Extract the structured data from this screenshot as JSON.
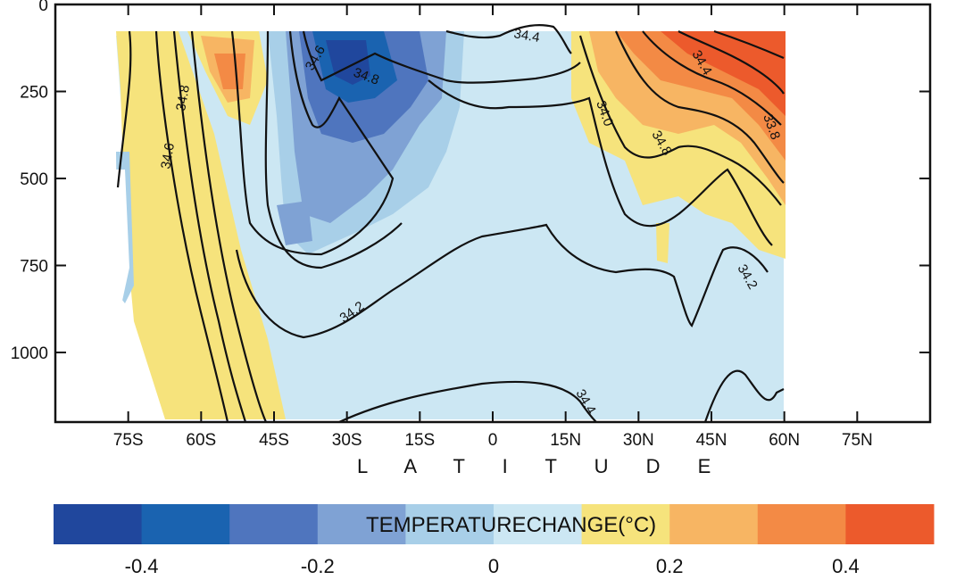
{
  "chart_data": {
    "type": "heatmap",
    "title": "",
    "xlabel": "L A T I T U D E",
    "ylabel": "",
    "x_ticks": [
      "75S",
      "60S",
      "45S",
      "30S",
      "15S",
      "0",
      "15N",
      "30N",
      "45N",
      "60N",
      "75N"
    ],
    "x_tick_values": [
      -75,
      -60,
      -45,
      -30,
      -15,
      0,
      15,
      30,
      45,
      60,
      75
    ],
    "xlim": [
      -90,
      90
    ],
    "y_ticks": [
      "0",
      "250",
      "500",
      "750",
      "1000"
    ],
    "y_tick_values": [
      0,
      250,
      500,
      750,
      1000
    ],
    "ylim": [
      0,
      1200
    ],
    "y_inverted": true,
    "colorbar": {
      "label": "TEMPERATURECHANGE(°C)",
      "ticks": [
        "-0.4",
        "-0.2",
        "0",
        "0.2",
        "0.4"
      ],
      "tick_values": [
        -0.4,
        -0.2,
        0,
        0.2,
        0.4
      ],
      "bin_edges": [
        -0.5,
        -0.4,
        -0.3,
        -0.2,
        -0.1,
        0,
        0.1,
        0.2,
        0.3,
        0.4,
        0.5
      ],
      "colors": [
        "#20479d",
        "#1a63b0",
        "#4f75be",
        "#7fa2d4",
        "#a8cfe8",
        "#cce7f3",
        "#f6e37c",
        "#f7b563",
        "#f38a45",
        "#ec5a2c"
      ]
    },
    "contour_labels": [
      "34.2",
      "34.2",
      "34.4",
      "34.4",
      "34.6",
      "34.6",
      "34.8",
      "34.8",
      "34.8",
      "33.8",
      "34.0",
      "34.4"
    ]
  },
  "colors": {
    "land": "#ffffff",
    "contour": "#111111"
  }
}
